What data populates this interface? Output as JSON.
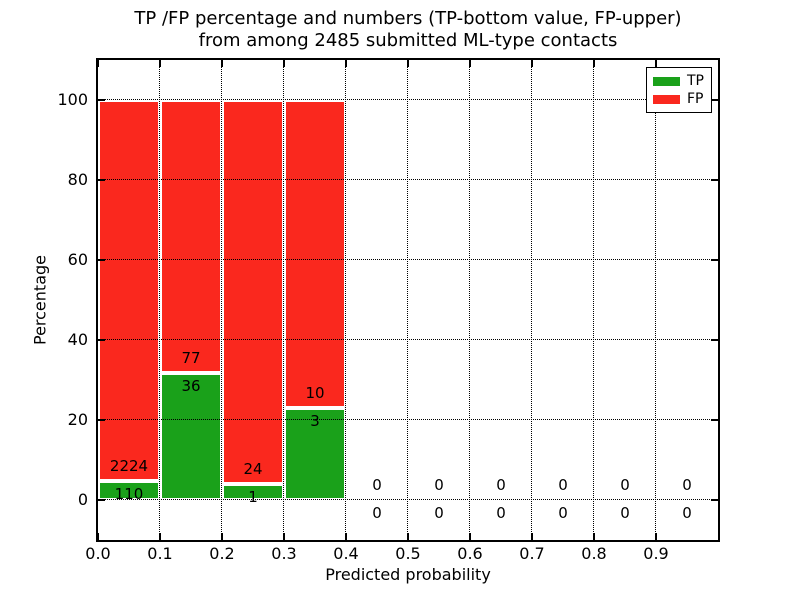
{
  "title": {
    "line1": "TP /FP percentage and numbers (TP-bottom value, FP-upper)",
    "line2": "from among 2485 submitted ML-type contacts"
  },
  "chart_data": {
    "type": "bar",
    "stacked": true,
    "title": "TP /FP percentage and numbers (TP-bottom value, FP-upper) from among 2485 submitted ML-type contacts",
    "xlabel": "Predicted probability",
    "ylabel": "Percentage",
    "xlim": [
      0.0,
      1.0
    ],
    "ylim": [
      -10,
      110
    ],
    "grid": "dotted",
    "grid_above_bars": true,
    "total_contacts": 2485,
    "bin_width": 0.1,
    "xticks": [
      0.0,
      0.1,
      0.2,
      0.3,
      0.4,
      0.5,
      0.6,
      0.7,
      0.8,
      0.9
    ],
    "xtick_labels": [
      "0.0",
      "0.1",
      "0.2",
      "0.3",
      "0.4",
      "0.5",
      "0.6",
      "0.7",
      "0.8",
      "0.9"
    ],
    "yticks": [
      0,
      20,
      40,
      60,
      80,
      100
    ],
    "ytick_labels": [
      "0",
      "20",
      "40",
      "60",
      "80",
      "100"
    ],
    "series": [
      {
        "name": "TP",
        "color": "#1aa11a"
      },
      {
        "name": "FP",
        "color": "#fa281e"
      }
    ],
    "bins": [
      {
        "x0": 0.0,
        "x1": 0.1,
        "TP": 110,
        "FP": 2224
      },
      {
        "x0": 0.1,
        "x1": 0.2,
        "TP": 36,
        "FP": 77
      },
      {
        "x0": 0.2,
        "x1": 0.3,
        "TP": 1,
        "FP": 24
      },
      {
        "x0": 0.3,
        "x1": 0.4,
        "TP": 3,
        "FP": 10
      },
      {
        "x0": 0.4,
        "x1": 0.5,
        "TP": 0,
        "FP": 0
      },
      {
        "x0": 0.5,
        "x1": 0.6,
        "TP": 0,
        "FP": 0
      },
      {
        "x0": 0.6,
        "x1": 0.7,
        "TP": 0,
        "FP": 0
      },
      {
        "x0": 0.7,
        "x1": 0.8,
        "TP": 0,
        "FP": 0
      },
      {
        "x0": 0.8,
        "x1": 0.9,
        "TP": 0,
        "FP": 0
      },
      {
        "x0": 0.9,
        "x1": 1.0,
        "TP": 0,
        "FP": 0
      }
    ],
    "legend": {
      "position": "upper right",
      "entries": [
        {
          "label": "TP",
          "color": "#1aa11a"
        },
        {
          "label": "FP",
          "color": "#fa281e"
        }
      ]
    },
    "colors": {
      "tp_green": "#1aa11a",
      "fp_red": "#fa281e",
      "axes": "#000000",
      "background": "#ffffff"
    }
  }
}
